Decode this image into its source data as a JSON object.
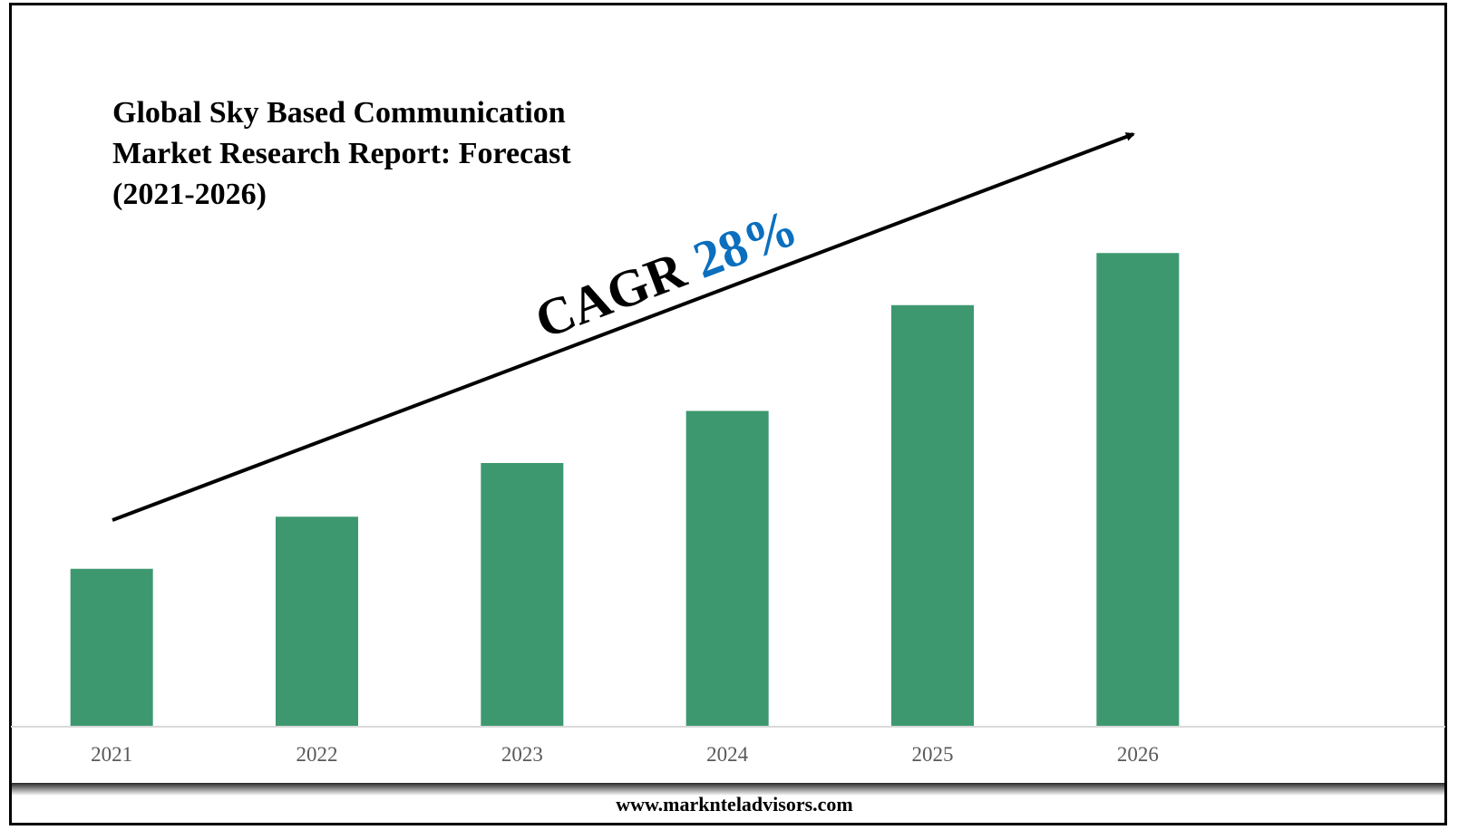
{
  "chart_data": {
    "type": "bar",
    "title_lines": [
      "Global Sky Based Communication",
      "Market Research Report: Forecast",
      "(2021-2026)"
    ],
    "categories": [
      "2021",
      "2022",
      "2023",
      "2024",
      "2025",
      "2026"
    ],
    "values": [
      1.0,
      1.33,
      1.67,
      2.0,
      2.67,
      3.0
    ],
    "ylim": [
      0,
      4
    ],
    "grid": false,
    "legend": "none",
    "annotation": {
      "label": "CAGR",
      "value": "28%"
    },
    "colors": {
      "bar": "#3d9870",
      "cagr_value": "#0b6fbe",
      "axis_line": "#d9d9d9"
    }
  },
  "footer": {
    "url": "www.marknteladvisors.com"
  }
}
